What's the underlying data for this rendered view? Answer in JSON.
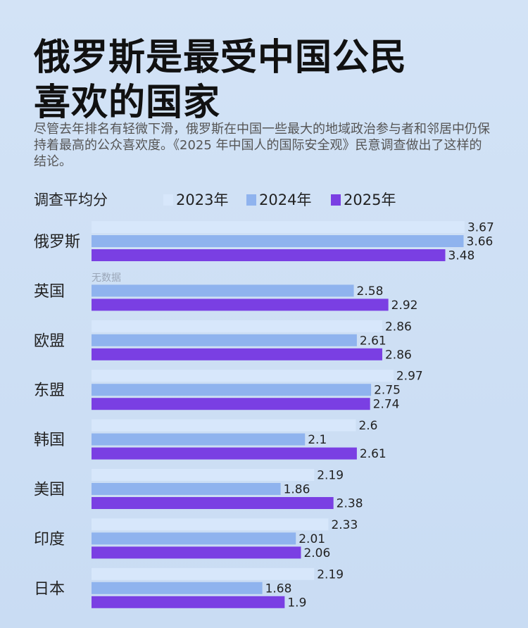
{
  "chart_data": {
    "type": "bar",
    "orientation": "horizontal",
    "title": "俄罗斯是最受中国公民喜欢的国家",
    "subtitle": "尽管去年排名有轻微下滑，俄罗斯在中国一些最大的地域政治参与者和邻居中仍保持着最高的公众喜欢度。《2025 年中国人的国际安全观》民意调查做出了这样的结论。",
    "legend_title": "调查平均分",
    "annotation": "无数据",
    "categories": [
      "俄罗斯",
      "英国",
      "欧盟",
      "东盟",
      "韩国",
      "美国",
      "印度",
      "日本"
    ],
    "series": [
      {
        "name": "2023年",
        "color": "#d7e7fb",
        "values": [
          3.67,
          null,
          2.86,
          2.97,
          2.6,
          2.19,
          2.33,
          2.19
        ]
      },
      {
        "name": "2024年",
        "color": "#8fb3ee",
        "values": [
          3.66,
          2.58,
          2.61,
          2.75,
          2.1,
          1.86,
          2.01,
          1.68
        ]
      },
      {
        "name": "2025年",
        "color": "#7a3fe3",
        "values": [
          3.48,
          2.92,
          2.86,
          2.74,
          2.61,
          2.38,
          2.06,
          1.9
        ]
      }
    ]
  }
}
